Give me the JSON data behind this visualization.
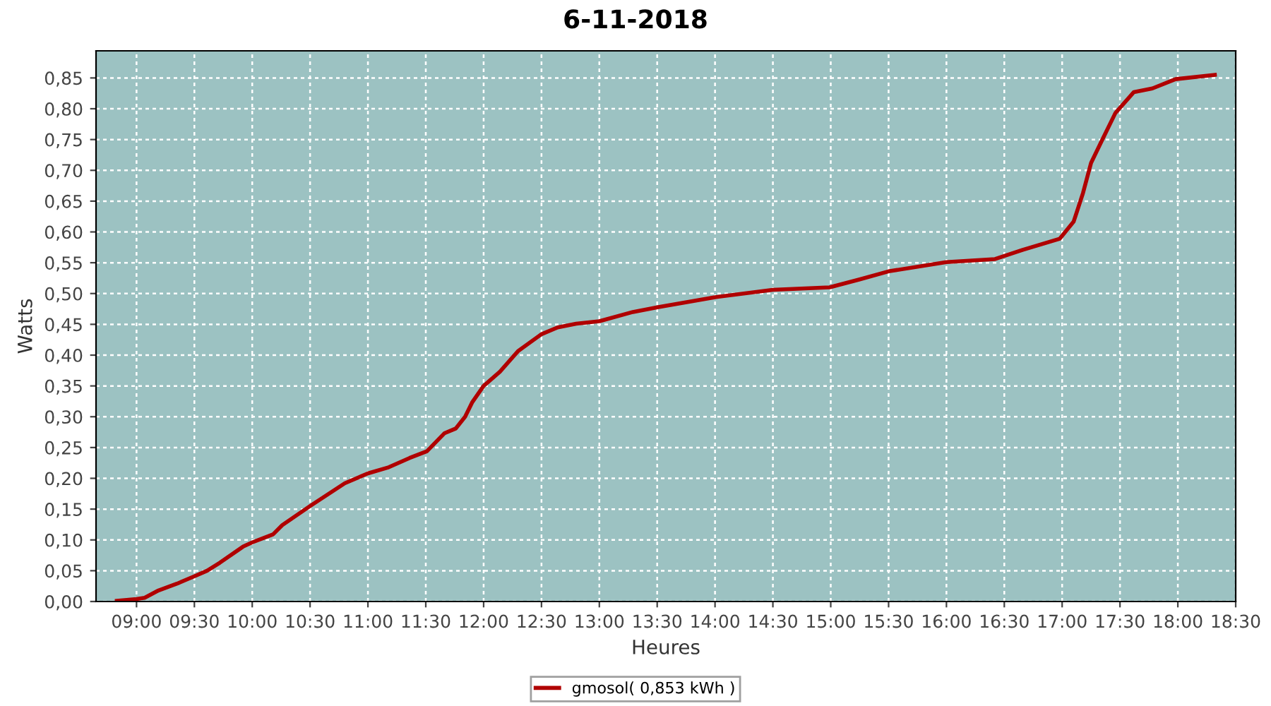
{
  "chart_data": {
    "type": "line",
    "title": "6-11-2018",
    "xlabel": "Heures",
    "ylabel": "Watts",
    "xlim": [
      8.65,
      18.5
    ],
    "ylim": [
      0,
      0.894
    ],
    "xticks": [
      {
        "value": 9,
        "label": "09:00"
      },
      {
        "value": 9.5,
        "label": "09:30"
      },
      {
        "value": 10,
        "label": "10:00"
      },
      {
        "value": 10.5,
        "label": "10:30"
      },
      {
        "value": 11,
        "label": "11:00"
      },
      {
        "value": 11.5,
        "label": "11:30"
      },
      {
        "value": 12,
        "label": "12:00"
      },
      {
        "value": 12.5,
        "label": "12:30"
      },
      {
        "value": 13,
        "label": "13:00"
      },
      {
        "value": 13.5,
        "label": "13:30"
      },
      {
        "value": 14,
        "label": "14:00"
      },
      {
        "value": 14.5,
        "label": "14:30"
      },
      {
        "value": 15,
        "label": "15:00"
      },
      {
        "value": 15.5,
        "label": "15:30"
      },
      {
        "value": 16,
        "label": "16:00"
      },
      {
        "value": 16.5,
        "label": "16:30"
      },
      {
        "value": 17,
        "label": "17:00"
      },
      {
        "value": 17.5,
        "label": "17:30"
      },
      {
        "value": 18,
        "label": "18:00"
      },
      {
        "value": 18.5,
        "label": "18:30"
      }
    ],
    "yticks": [
      {
        "value": 0,
        "label": "0,00"
      },
      {
        "value": 0.05,
        "label": "0,05"
      },
      {
        "value": 0.1,
        "label": "0,10"
      },
      {
        "value": 0.15,
        "label": "0,15"
      },
      {
        "value": 0.2,
        "label": "0,20"
      },
      {
        "value": 0.25,
        "label": "0,25"
      },
      {
        "value": 0.3,
        "label": "0,30"
      },
      {
        "value": 0.35,
        "label": "0,35"
      },
      {
        "value": 0.4,
        "label": "0,40"
      },
      {
        "value": 0.45,
        "label": "0,45"
      },
      {
        "value": 0.5,
        "label": "0,50"
      },
      {
        "value": 0.55,
        "label": "0,55"
      },
      {
        "value": 0.6,
        "label": "0,60"
      },
      {
        "value": 0.65,
        "label": "0,65"
      },
      {
        "value": 0.7,
        "label": "0,70"
      },
      {
        "value": 0.75,
        "label": "0,75"
      },
      {
        "value": 0.8,
        "label": "0,80"
      },
      {
        "value": 0.85,
        "label": "0,85"
      }
    ],
    "grid": true,
    "legend": "bottom",
    "marker": "none",
    "line_style": "solid",
    "series": [
      {
        "name": "gmosol( 0,853 kWh )",
        "color": "#b00000",
        "x": [
          8.83,
          9.0,
          9.07,
          9.19,
          9.35,
          9.5,
          9.61,
          9.72,
          9.92,
          10.0,
          10.18,
          10.26,
          10.5,
          10.8,
          11.0,
          11.18,
          11.36,
          11.51,
          11.66,
          11.76,
          11.84,
          11.9,
          12.0,
          12.14,
          12.3,
          12.5,
          12.64,
          12.8,
          13.0,
          13.29,
          13.51,
          14.0,
          14.5,
          14.99,
          15.25,
          15.5,
          16.0,
          16.42,
          16.66,
          16.98,
          17.1,
          17.18,
          17.25,
          17.34,
          17.46,
          17.62,
          17.78,
          17.98,
          18.32
        ],
        "values": [
          0.001,
          0.004,
          0.006,
          0.018,
          0.029,
          0.041,
          0.05,
          0.063,
          0.089,
          0.096,
          0.109,
          0.124,
          0.155,
          0.192,
          0.208,
          0.218,
          0.233,
          0.244,
          0.273,
          0.281,
          0.3,
          0.323,
          0.35,
          0.373,
          0.407,
          0.434,
          0.445,
          0.451,
          0.455,
          0.47,
          0.478,
          0.494,
          0.506,
          0.51,
          0.523,
          0.536,
          0.551,
          0.556,
          0.571,
          0.589,
          0.617,
          0.663,
          0.712,
          0.747,
          0.793,
          0.827,
          0.833,
          0.848,
          0.855
        ]
      }
    ]
  }
}
